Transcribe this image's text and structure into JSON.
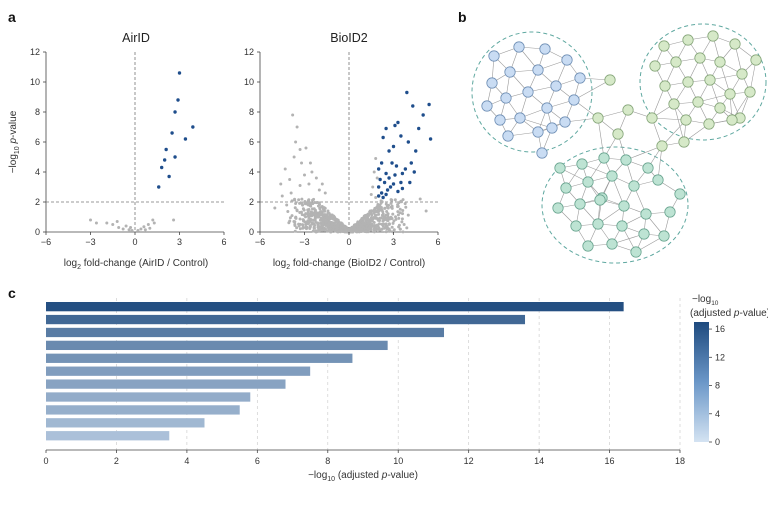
{
  "panel_labels": {
    "a": "a",
    "b": "b",
    "c": "c"
  },
  "colors": {
    "significant": "#1f4e8c",
    "nonsignificant": "#b3b3b3",
    "threshold_line": "#777777",
    "bar_low": "#cfdff0",
    "bar_high": "#1e4a7e",
    "cluster_blue": "#c6d9f2",
    "cluster_green_light": "#d3e8c4",
    "cluster_teal": "#b8e0d0",
    "cluster_outline": "#5fa8a0"
  },
  "chart_data": [
    {
      "type": "scatter",
      "title": "AirID",
      "xlabel_main": "log",
      "xlabel_sub": "2",
      "xlabel_rest": " fold-change (AirID / Control)",
      "ylabel_main": "−log",
      "ylabel_sub": "10",
      "ylabel_italic": "p",
      "ylabel_rest": "-value",
      "xlim": [
        -6,
        6
      ],
      "ylim": [
        0,
        12
      ],
      "xticks": [
        -6,
        -3,
        0,
        3,
        6
      ],
      "yticks": [
        0,
        2,
        4,
        6,
        8,
        10,
        12
      ],
      "threshold_y": 2,
      "threshold_x": 0,
      "significant_points": [
        [
          3.0,
          10.6
        ],
        [
          2.9,
          8.8
        ],
        [
          2.7,
          8.0
        ],
        [
          3.9,
          7.0
        ],
        [
          2.5,
          6.6
        ],
        [
          3.4,
          6.2
        ],
        [
          2.1,
          5.5
        ],
        [
          2.0,
          4.8
        ],
        [
          2.7,
          5.0
        ],
        [
          1.8,
          4.3
        ],
        [
          2.3,
          3.7
        ],
        [
          1.6,
          3.0
        ]
      ],
      "nonsignificant_points": [
        [
          -3.0,
          0.8
        ],
        [
          -2.6,
          0.6
        ],
        [
          -1.5,
          0.5
        ],
        [
          -1.1,
          0.3
        ],
        [
          -0.8,
          0.2
        ],
        [
          -0.6,
          0.4
        ],
        [
          -0.4,
          0.15
        ],
        [
          -0.2,
          0.1
        ],
        [
          0.2,
          0.1
        ],
        [
          0.4,
          0.2
        ],
        [
          0.6,
          0.35
        ],
        [
          0.9,
          0.5
        ],
        [
          1.2,
          0.8
        ],
        [
          1.3,
          0.6
        ],
        [
          2.6,
          0.8
        ],
        [
          -1.9,
          0.6
        ],
        [
          -0.3,
          0.3
        ],
        [
          0.7,
          0.15
        ],
        [
          1.0,
          0.25
        ],
        [
          -1.2,
          0.7
        ]
      ]
    },
    {
      "type": "scatter",
      "title": "BioID2",
      "xlabel_main": "log",
      "xlabel_sub": "2",
      "xlabel_rest": " fold-change (BioID2 / Control)",
      "ylabel_main": "",
      "xlim": [
        -6,
        6
      ],
      "ylim": [
        0,
        12
      ],
      "xticks": [
        -6,
        -3,
        0,
        3,
        6
      ],
      "yticks": [
        0,
        2,
        4,
        6,
        8,
        10,
        12
      ],
      "threshold_y": 2,
      "threshold_x": 0,
      "significant_points": [
        [
          3.9,
          9.3
        ],
        [
          5.4,
          8.5
        ],
        [
          4.3,
          8.4
        ],
        [
          5.0,
          7.8
        ],
        [
          3.3,
          7.3
        ],
        [
          3.1,
          7.1
        ],
        [
          2.5,
          6.9
        ],
        [
          4.7,
          6.9
        ],
        [
          5.5,
          6.2
        ],
        [
          3.5,
          6.4
        ],
        [
          2.3,
          6.3
        ],
        [
          4.0,
          6.0
        ],
        [
          4.5,
          5.4
        ],
        [
          3.0,
          5.7
        ],
        [
          2.7,
          5.4
        ],
        [
          4.2,
          4.6
        ],
        [
          4.4,
          4.0
        ],
        [
          3.8,
          4.2
        ],
        [
          2.2,
          4.6
        ],
        [
          3.2,
          4.4
        ],
        [
          2.0,
          4.2
        ],
        [
          2.5,
          3.9
        ],
        [
          2.9,
          4.6
        ],
        [
          3.6,
          3.9
        ],
        [
          2.1,
          3.5
        ],
        [
          2.4,
          3.3
        ],
        [
          3.0,
          3.2
        ],
        [
          2.8,
          3.0
        ],
        [
          2.0,
          3.0
        ],
        [
          3.5,
          3.3
        ],
        [
          2.6,
          2.8
        ],
        [
          2.2,
          2.6
        ],
        [
          3.3,
          2.7
        ],
        [
          4.1,
          3.3
        ],
        [
          2.3,
          2.3
        ],
        [
          2.7,
          3.6
        ],
        [
          2.0,
          2.4
        ],
        [
          3.1,
          3.8
        ],
        [
          2.5,
          2.5
        ],
        [
          3.6,
          2.9
        ]
      ],
      "nonsignificant_points": [
        [
          -3.8,
          7.8
        ],
        [
          -3.5,
          7.0
        ],
        [
          -3.6,
          6.0
        ],
        [
          -3.3,
          5.5
        ],
        [
          -3.7,
          5.0
        ],
        [
          -2.9,
          5.6
        ],
        [
          -3.2,
          4.6
        ],
        [
          -2.6,
          4.6
        ],
        [
          -4.3,
          4.2
        ],
        [
          -2.5,
          4.0
        ],
        [
          -4.6,
          3.2
        ],
        [
          -4.0,
          3.5
        ],
        [
          -3.0,
          3.8
        ],
        [
          -2.2,
          3.6
        ],
        [
          -1.8,
          3.2
        ],
        [
          -3.3,
          3.1
        ],
        [
          -2.7,
          3.2
        ],
        [
          -3.9,
          2.6
        ],
        [
          -4.5,
          2.4
        ],
        [
          -2.0,
          2.8
        ],
        [
          -1.6,
          2.6
        ],
        [
          1.8,
          4.9
        ],
        [
          1.7,
          4.0
        ],
        [
          1.9,
          3.6
        ],
        [
          1.6,
          3.0
        ],
        [
          1.5,
          2.5
        ],
        [
          1.8,
          2.3
        ],
        [
          -5.0,
          1.6
        ],
        [
          -4.2,
          1.8
        ],
        [
          -3.6,
          1.9
        ],
        [
          4.8,
          2.2
        ],
        [
          5.2,
          1.4
        ],
        [
          0.3,
          0.1
        ]
      ]
    },
    {
      "type": "bar",
      "orientation": "horizontal",
      "xlabel_main": "−log",
      "xlabel_sub": "10",
      "xlabel_rest": " (adjusted ",
      "xlabel_italic": "p",
      "xlabel_end": "-value)",
      "xlim": [
        0,
        18
      ],
      "xticks": [
        0,
        2,
        4,
        6,
        8,
        10,
        12,
        14,
        16,
        18
      ],
      "grid": true,
      "values": [
        16.4,
        13.6,
        11.3,
        9.7,
        8.7,
        7.5,
        6.8,
        5.8,
        5.5,
        4.5,
        3.5
      ],
      "colorbar": {
        "title_line1": "−log",
        "title_sub": "10",
        "title_line2": "(adjusted ",
        "title_italic": "p",
        "title_end": "-value)",
        "ticks": [
          0,
          4,
          8,
          12,
          16
        ],
        "range": [
          0,
          17
        ]
      }
    }
  ]
}
